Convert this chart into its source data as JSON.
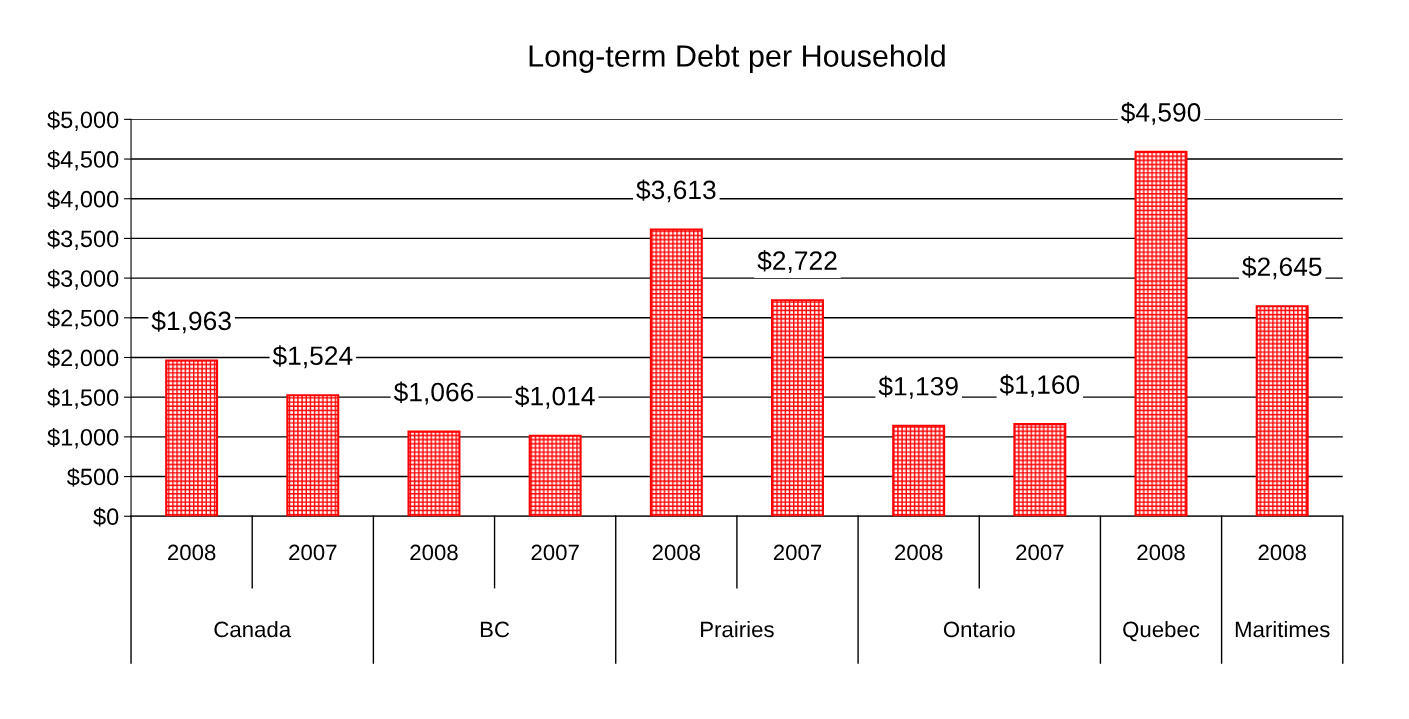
{
  "chart_data": {
    "type": "bar",
    "title": "Long-term Debt per Household",
    "categories": [
      "2008",
      "2007",
      "2008",
      "2007",
      "2008",
      "2007",
      "2008",
      "2007",
      "2008",
      "2008"
    ],
    "values": [
      1963,
      1524,
      1066,
      1014,
      3613,
      2722,
      1139,
      1160,
      4590,
      2645
    ],
    "value_labels": [
      "$1,963",
      "$1,524",
      "$1,066",
      "$1,014",
      "$3,613",
      "$2,722",
      "$1,139",
      "$1,160",
      "$4,590",
      "$2,645"
    ],
    "color": "#ff0000",
    "annotations": [
      "Canada",
      "BC",
      "Prairies",
      "Ontario",
      "Quebec",
      "Maritimes"
    ],
    "ylim": [
      0,
      5000
    ],
    "yticks": [
      {
        "value": 0,
        "label": "$0"
      },
      {
        "value": 500,
        "label": "$500"
      },
      {
        "value": 1000,
        "label": "$1,000"
      },
      {
        "value": 1500,
        "label": "$1,500"
      },
      {
        "value": 2000,
        "label": "$2,000"
      },
      {
        "value": 2500,
        "label": "$2,500"
      },
      {
        "value": 3000,
        "label": "$3,000"
      },
      {
        "value": 3500,
        "label": "$3,500"
      },
      {
        "value": 4000,
        "label": "$4,000"
      },
      {
        "value": 4500,
        "label": "$4,500"
      },
      {
        "value": 5000,
        "label": "$5,000"
      }
    ],
    "grid": "y"
  }
}
